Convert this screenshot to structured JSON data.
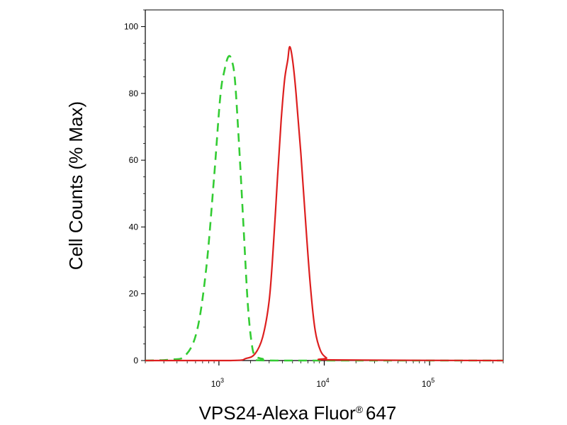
{
  "chart_data": {
    "type": "line",
    "title": "",
    "xlabel": "VPS24-Alexa Fluor",
    "xlabel_mark": "®",
    "xlabel_suffix": "647",
    "ylabel": "Cell Counts (% Max)",
    "x_scale": "log",
    "xlim": [
      200,
      500000
    ],
    "ylim": [
      0,
      105
    ],
    "grid": false,
    "x_ticks": [
      {
        "value": 1000,
        "base": "10",
        "exp": "3"
      },
      {
        "value": 10000,
        "base": "10",
        "exp": "4"
      },
      {
        "value": 100000,
        "base": "10",
        "exp": "5"
      }
    ],
    "y_ticks": [
      0,
      20,
      40,
      60,
      80,
      100
    ],
    "series": [
      {
        "color": "#33cc33",
        "style": "dashed",
        "x": [
          200,
          350,
          480,
          620,
          760,
          900,
          1030,
          1130,
          1230,
          1320,
          1420,
          1550,
          1700,
          1880,
          2050,
          2200,
          2600,
          3500,
          500000
        ],
        "y": [
          0,
          0.3,
          1.5,
          9,
          28,
          55,
          79,
          87,
          91,
          90,
          84,
          65,
          42,
          17,
          5,
          1.5,
          0.5,
          0,
          0
        ]
      },
      {
        "color": "#dd1f1f",
        "style": "solid",
        "x": [
          200,
          1300,
          1800,
          2200,
          2600,
          3000,
          3300,
          3600,
          3900,
          4200,
          4500,
          4700,
          5000,
          5400,
          6000,
          6700,
          7400,
          8200,
          9200,
          10500,
          12000,
          500000
        ],
        "y": [
          0,
          0,
          0.6,
          2,
          7,
          18,
          35,
          55,
          72,
          84,
          90,
          94,
          90,
          80,
          62,
          40,
          22,
          9,
          3,
          0.8,
          0.2,
          0
        ]
      }
    ]
  }
}
